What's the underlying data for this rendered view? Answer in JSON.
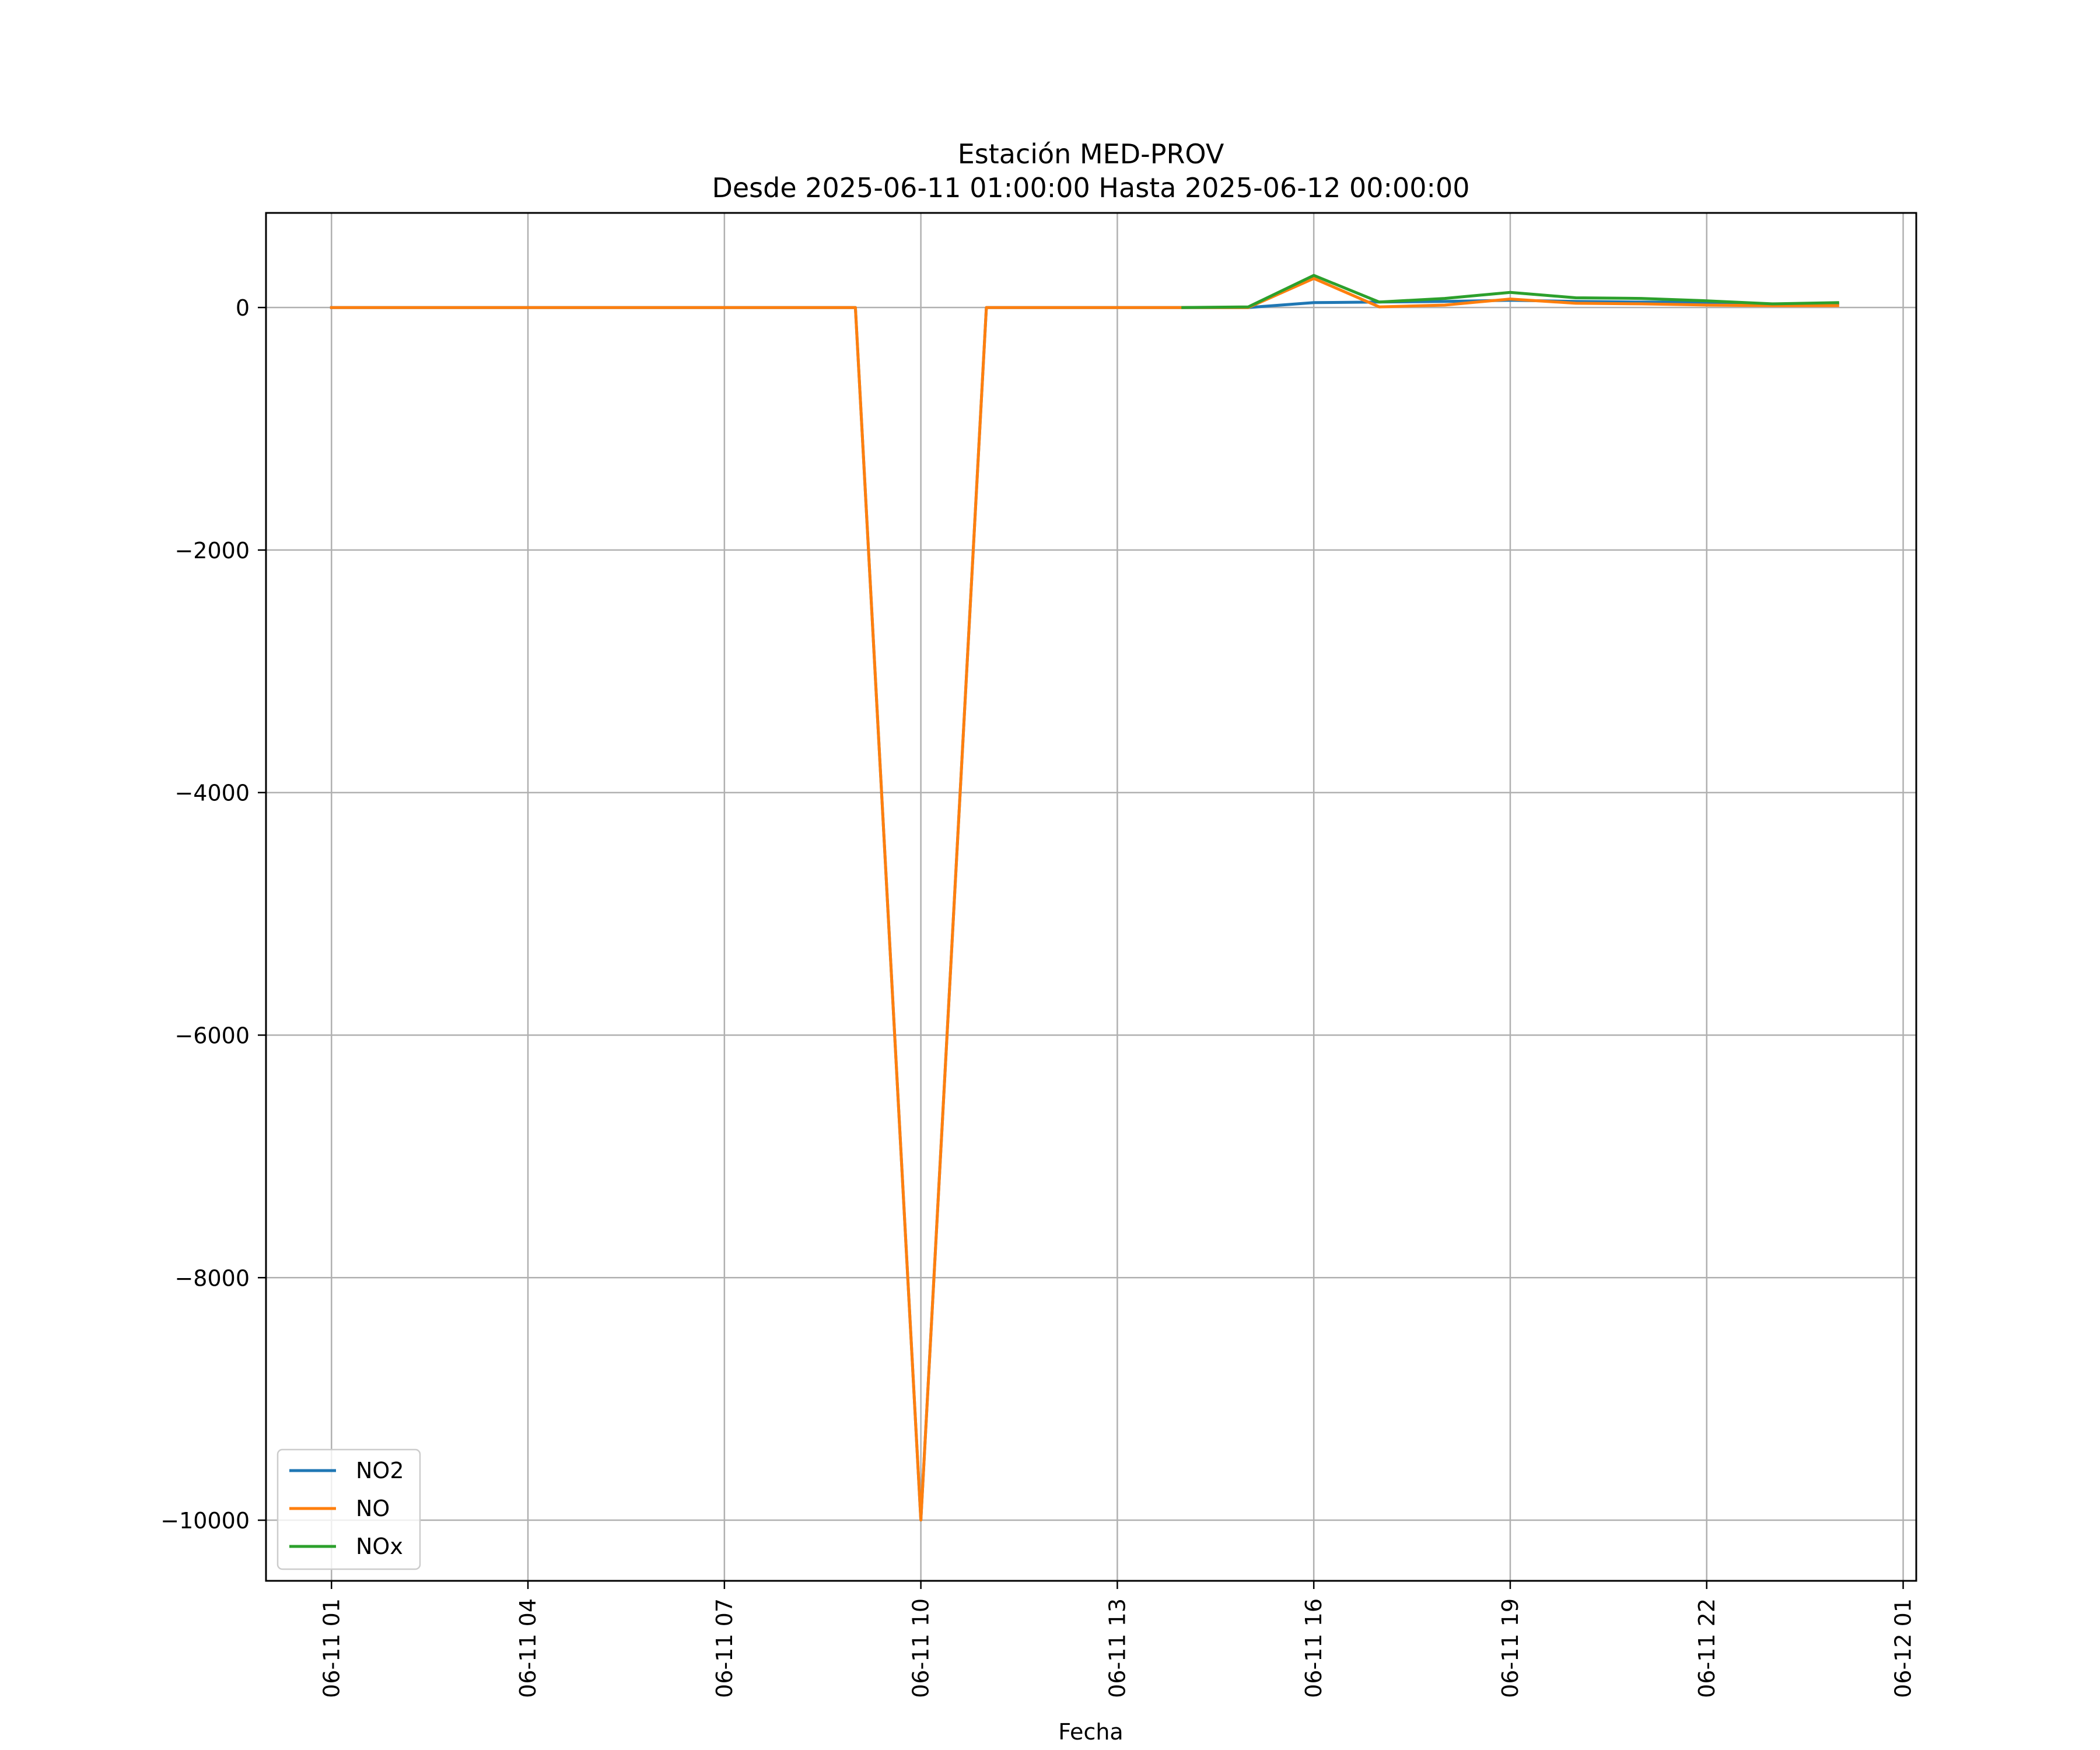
{
  "chart_data": {
    "type": "line",
    "title": "Estación MED-PROV",
    "subtitle": "Desde 2025-06-11 01:00:00 Hasta 2025-06-12 00:00:00",
    "xlabel": "Fecha",
    "ylabel": "",
    "x": [
      "06-11 01:00",
      "06-11 02:00",
      "06-11 03:00",
      "06-11 04:00",
      "06-11 05:00",
      "06-11 06:00",
      "06-11 07:00",
      "06-11 08:00",
      "06-11 09:00",
      "06-11 10:00",
      "06-11 11:00",
      "06-11 12:00",
      "06-11 13:00",
      "06-11 14:00",
      "06-11 15:00",
      "06-11 16:00",
      "06-11 17:00",
      "06-11 18:00",
      "06-11 19:00",
      "06-11 20:00",
      "06-11 21:00",
      "06-11 22:00",
      "06-11 23:00",
      "06-12 00:00"
    ],
    "xlim": [
      "06-11 00:00",
      "06-12 01:12"
    ],
    "ylim": [
      -10500,
      780
    ],
    "x_ticks": [
      "06-11 01",
      "06-11 04",
      "06-11 07",
      "06-11 10",
      "06-11 13",
      "06-11 16",
      "06-11 19",
      "06-11 22",
      "06-12 01"
    ],
    "y_ticks": [
      0,
      -2000,
      -4000,
      -6000,
      -8000,
      -10000
    ],
    "y_tick_labels": [
      "0",
      "−2000",
      "−4000",
      "−6000",
      "−8000",
      "−10000"
    ],
    "grid": true,
    "legend_position": "lower-left",
    "series": [
      {
        "name": "NO2",
        "color": "#1f77b4",
        "values": [
          0,
          0,
          0,
          0,
          0,
          0,
          0,
          0,
          0,
          -9999,
          0,
          0,
          0,
          0,
          0,
          40,
          45,
          50,
          60,
          50,
          45,
          40,
          20,
          30
        ]
      },
      {
        "name": "NO",
        "color": "#ff7f0e",
        "values": [
          0,
          0,
          0,
          0,
          0,
          0,
          0,
          0,
          0,
          -9999,
          0,
          0,
          0,
          0,
          0,
          240,
          5,
          20,
          70,
          35,
          30,
          20,
          15,
          15
        ]
      },
      {
        "name": "NOx",
        "color": "#2ca02c",
        "values": [
          null,
          null,
          null,
          null,
          null,
          null,
          null,
          null,
          null,
          null,
          null,
          null,
          null,
          0,
          5,
          265,
          45,
          75,
          125,
          80,
          75,
          55,
          30,
          40
        ]
      }
    ]
  }
}
